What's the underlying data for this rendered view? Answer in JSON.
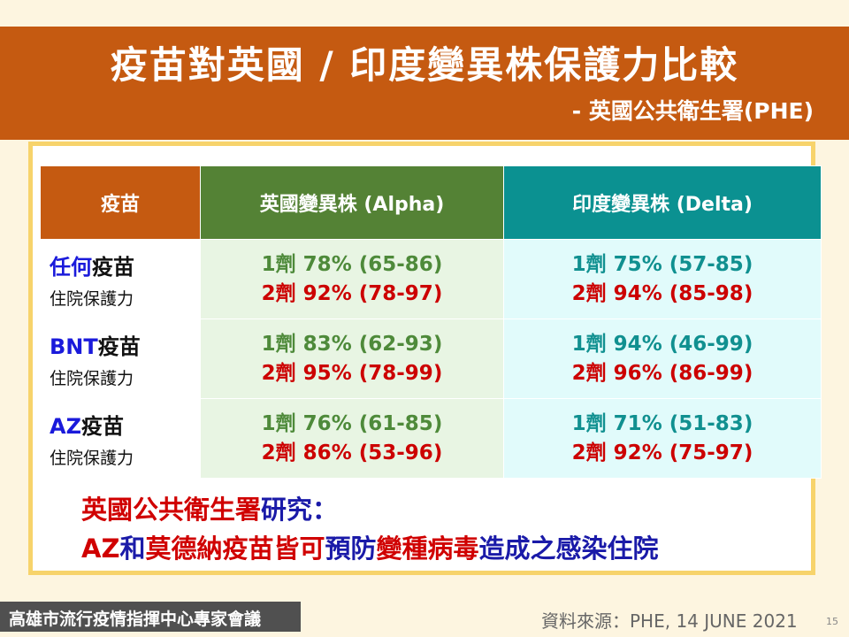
{
  "title": "疫苗對英國 / 印度變異株保護力比較",
  "subtitle": "- 英國公共衛生署(PHE)",
  "table": {
    "headers": [
      "疫苗",
      "英國變異株 (Alpha)",
      "印度變異株 (Delta)"
    ],
    "rows": [
      {
        "name_blue": "任何",
        "name_rest": "疫苗",
        "sub": "住院保護力",
        "alpha_dose1": "1劑 78% (65-86)",
        "alpha_dose2": "2劑 92% (78-97)",
        "delta_dose1": "1劑 75% (57-85)",
        "delta_dose2": "2劑 94% (85-98)"
      },
      {
        "name_blue": "BNT",
        "name_rest": "疫苗",
        "sub": "住院保護力",
        "alpha_dose1": "1劑 83% (62-93)",
        "alpha_dose2": "2劑 95% (78-99)",
        "delta_dose1": "1劑 94% (46-99)",
        "delta_dose2": "2劑 96% (86-99)"
      },
      {
        "name_blue": "AZ",
        "name_rest": "疫苗",
        "sub": "住院保護力",
        "alpha_dose1": "1劑 76% (61-85)",
        "alpha_dose2": "2劑 86% (53-96)",
        "delta_dose1": "1劑 71% (51-83)",
        "delta_dose2": "2劑 92% (75-97)"
      }
    ]
  },
  "conclusion": {
    "line1_red": "英國公共衛生署",
    "line1_blue": "研究：",
    "line2": [
      {
        "text": "AZ",
        "color": "red"
      },
      {
        "text": "和",
        "color": "blue"
      },
      {
        "text": "莫德納疫苗皆可",
        "color": "red"
      },
      {
        "text": "預防",
        "color": "blue"
      },
      {
        "text": "變種病毒",
        "color": "red"
      },
      {
        "text": "造成之感染住院",
        "color": "blue"
      }
    ]
  },
  "footer": {
    "org": "高雄市流行疫情指揮中心專家會議",
    "source": "資料來源：PHE, 14 JUNE 2021",
    "page": "15"
  },
  "colors": {
    "header_bg": "#c55a11",
    "alpha_header": "#548235",
    "delta_header": "#0b9191",
    "card_border": "#f7d36b",
    "red": "#cc0000",
    "blue": "#1a1adb"
  }
}
